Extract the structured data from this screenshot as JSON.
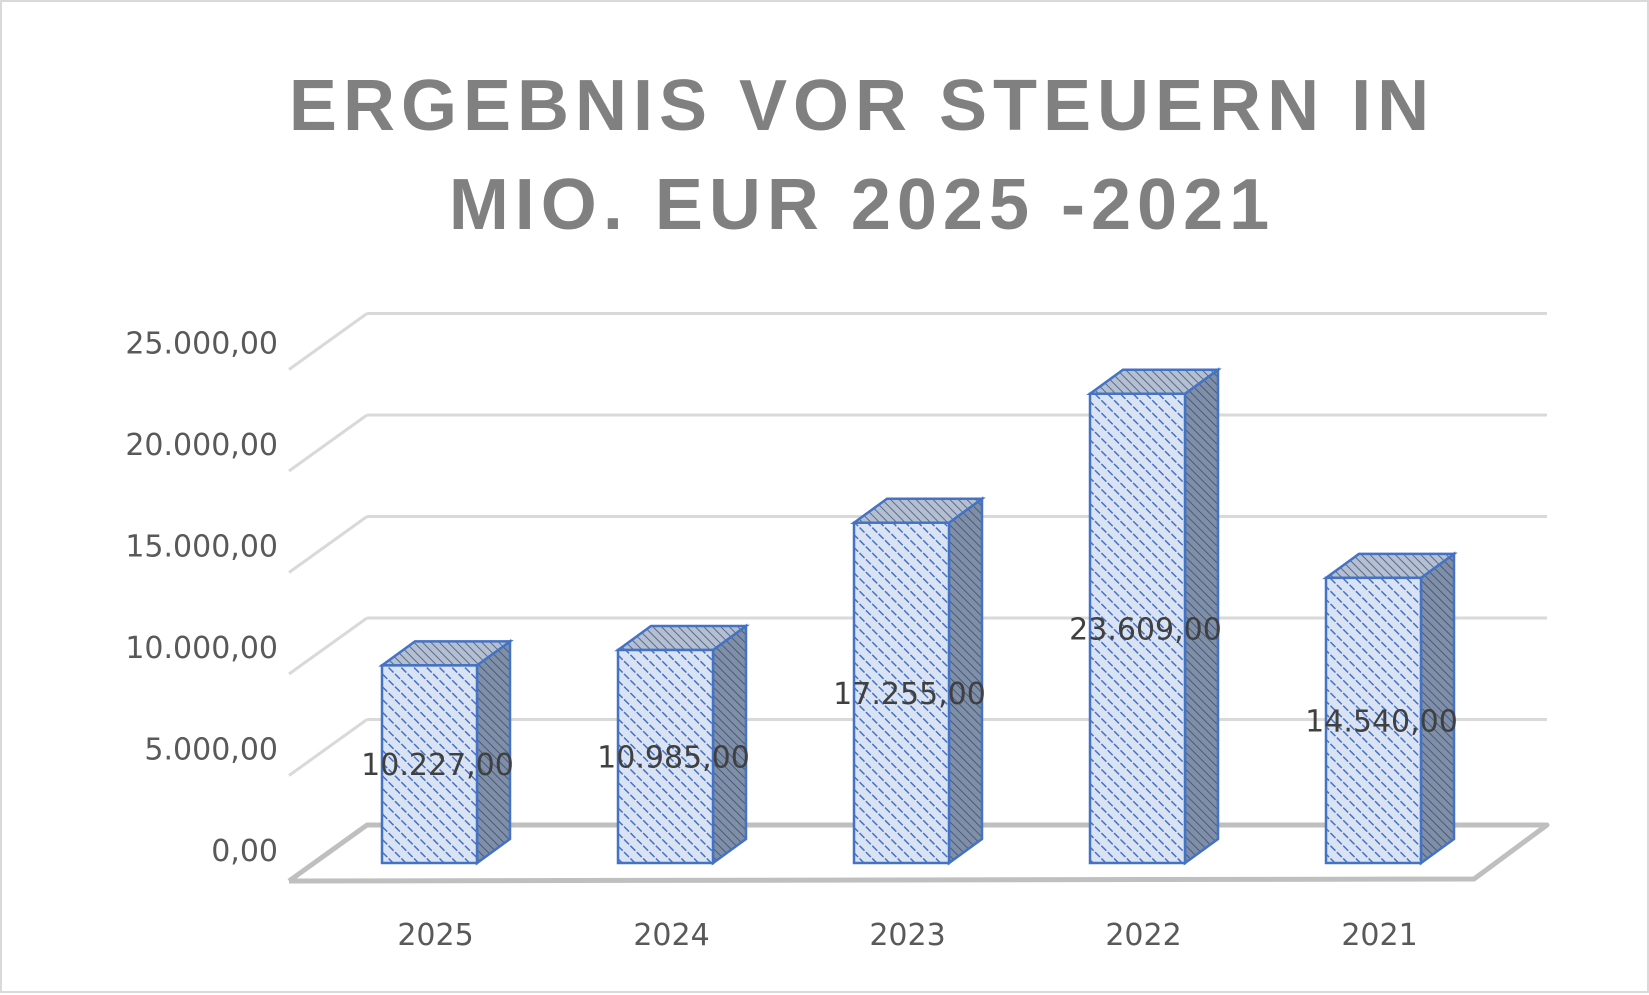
{
  "chart_data": {
    "type": "bar",
    "title_lines": [
      "ERGEBNIS VOR STEUERN IN",
      "MIO. EUR 2025 -2021"
    ],
    "categories": [
      "2025",
      "2024",
      "2023",
      "2022",
      "2021"
    ],
    "values": [
      10227,
      10985,
      17255,
      23609,
      14540
    ],
    "value_labels": [
      "10.227,00",
      "10.985,00",
      "17.255,00",
      "23.609,00",
      "14.540,00"
    ],
    "y_tick_labels": [
      "0,00",
      "5.000,00",
      "10.000,00",
      "15.000,00",
      "20.000,00",
      "25.000,00"
    ],
    "y_tick_values": [
      0,
      5000,
      10000,
      15000,
      20000,
      25000
    ],
    "ylim": [
      0,
      25000
    ],
    "grid": true,
    "legend": "none",
    "style": "3d-column",
    "colors": {
      "bar_front": "#dae3f3",
      "bar_hatch": "#4472c4",
      "bar_side": "#8497b0",
      "bar_top": "#a6b4c8",
      "bar_edge": "#4472c4",
      "grid": "#d9d9d9",
      "floor": "#bfbfbf",
      "title": "#808080",
      "tick_text": "#595959"
    }
  }
}
